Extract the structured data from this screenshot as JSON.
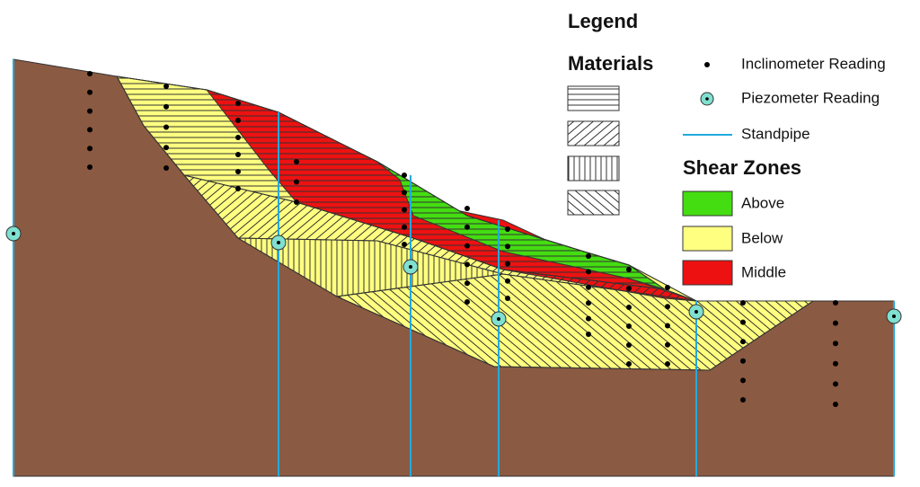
{
  "legend": {
    "title": "Legend",
    "materials_title": "Materials",
    "symbols": [
      {
        "label": "Inclinometer Reading"
      },
      {
        "label": "Piezometer Reading"
      },
      {
        "label": "Standpipe"
      }
    ],
    "shear_zones_title": "Shear Zones",
    "shear_zones": [
      {
        "label": "Above"
      },
      {
        "label": "Below"
      },
      {
        "label": "Middle"
      }
    ]
  }
}
